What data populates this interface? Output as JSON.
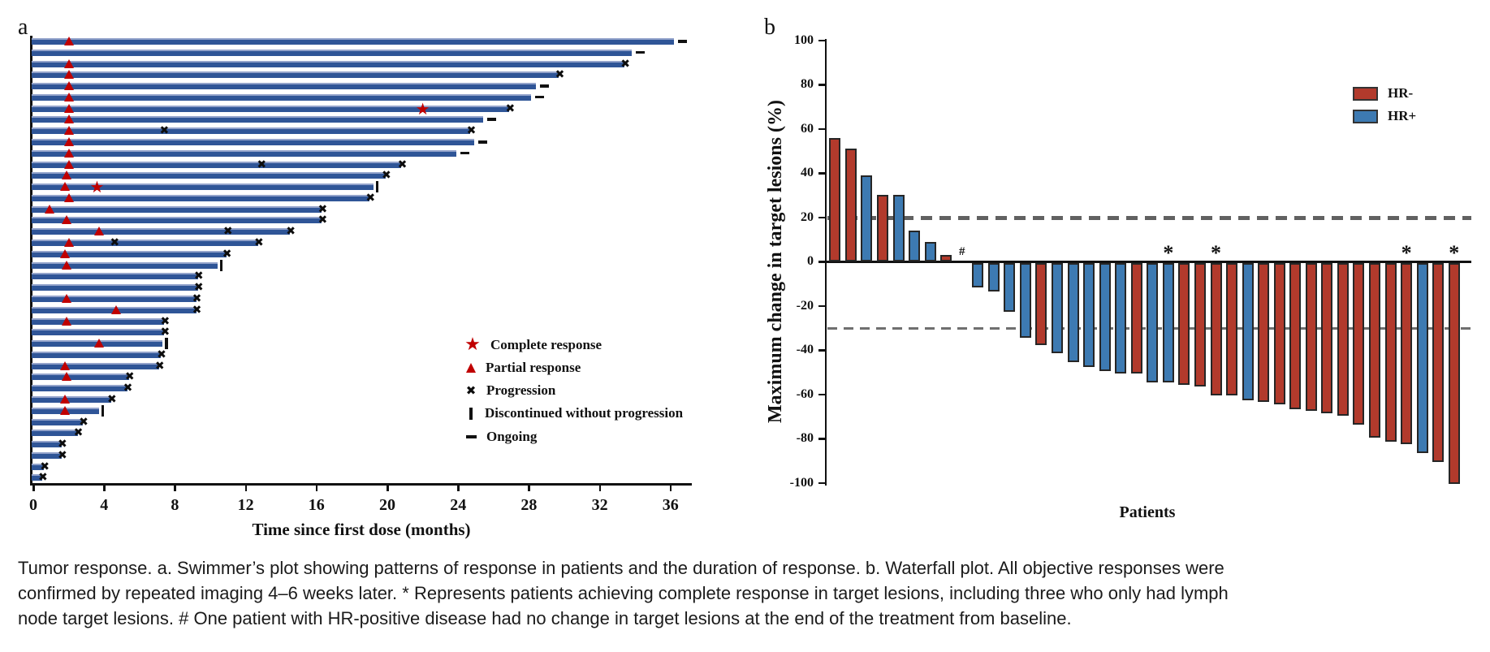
{
  "figure_labels": {
    "panel_a": "a",
    "panel_b": "b"
  },
  "chart_data": [
    {
      "type": "swimmer",
      "xlabel": "Time since first dose (months)",
      "xlim": [
        0,
        38
      ],
      "xticks": [
        0,
        4,
        8,
        12,
        16,
        20,
        24,
        28,
        32,
        36
      ],
      "legend": [
        "Complete response",
        "Partial response",
        "Progression",
        "Discontinued without progression",
        "Ongoing"
      ],
      "bar_color": "#2f5597",
      "marker_red": "#c00000",
      "patients": [
        {
          "duration": 36.2,
          "end": "ongoing",
          "partial_response_at": 2.0,
          "complete_response_at": null,
          "extra_progression_at": null
        },
        {
          "duration": 33.8,
          "end": "ongoing",
          "partial_response_at": null,
          "complete_response_at": null,
          "extra_progression_at": null
        },
        {
          "duration": 33.4,
          "end": "progression",
          "partial_response_at": 2.0,
          "complete_response_at": null,
          "extra_progression_at": null
        },
        {
          "duration": 29.7,
          "end": "progression",
          "partial_response_at": 2.0,
          "complete_response_at": null,
          "extra_progression_at": null
        },
        {
          "duration": 28.4,
          "end": "ongoing",
          "partial_response_at": 2.0,
          "complete_response_at": null,
          "extra_progression_at": null
        },
        {
          "duration": 28.1,
          "end": "ongoing",
          "partial_response_at": 2.0,
          "complete_response_at": null,
          "extra_progression_at": null
        },
        {
          "duration": 26.9,
          "end": "progression",
          "partial_response_at": 2.0,
          "complete_response_at": 22.0,
          "extra_progression_at": null
        },
        {
          "duration": 25.4,
          "end": "ongoing",
          "partial_response_at": 2.0,
          "complete_response_at": null,
          "extra_progression_at": null
        },
        {
          "duration": 24.7,
          "end": "progression",
          "partial_response_at": 2.0,
          "complete_response_at": null,
          "extra_progression_at": 7.4
        },
        {
          "duration": 24.9,
          "end": "ongoing",
          "partial_response_at": 2.0,
          "complete_response_at": null,
          "extra_progression_at": null
        },
        {
          "duration": 23.9,
          "end": "ongoing",
          "partial_response_at": 2.0,
          "complete_response_at": null,
          "extra_progression_at": null
        },
        {
          "duration": 20.8,
          "end": "progression",
          "partial_response_at": 2.0,
          "complete_response_at": null,
          "extra_progression_at": 12.9
        },
        {
          "duration": 19.9,
          "end": "progression",
          "partial_response_at": 1.9,
          "complete_response_at": null,
          "extra_progression_at": null
        },
        {
          "duration": 19.2,
          "end": "discontinued",
          "partial_response_at": 1.8,
          "complete_response_at": 3.6,
          "extra_progression_at": null
        },
        {
          "duration": 19.0,
          "end": "progression",
          "partial_response_at": 2.0,
          "complete_response_at": null,
          "extra_progression_at": null
        },
        {
          "duration": 16.3,
          "end": "progression",
          "partial_response_at": 0.9,
          "complete_response_at": null,
          "extra_progression_at": null
        },
        {
          "duration": 16.3,
          "end": "progression",
          "partial_response_at": 1.9,
          "complete_response_at": null,
          "extra_progression_at": null
        },
        {
          "duration": 14.5,
          "end": "progression",
          "partial_response_at": 3.7,
          "complete_response_at": null,
          "extra_progression_at": 11.0
        },
        {
          "duration": 12.7,
          "end": "progression",
          "partial_response_at": 2.0,
          "complete_response_at": null,
          "extra_progression_at": 4.6
        },
        {
          "duration": 10.9,
          "end": "progression",
          "partial_response_at": 1.8,
          "complete_response_at": null,
          "extra_progression_at": null
        },
        {
          "duration": 10.4,
          "end": "discontinued",
          "partial_response_at": 1.9,
          "complete_response_at": null,
          "extra_progression_at": null
        },
        {
          "duration": 9.3,
          "end": "progression",
          "partial_response_at": null,
          "complete_response_at": null,
          "extra_progression_at": null
        },
        {
          "duration": 9.3,
          "end": "progression",
          "partial_response_at": null,
          "complete_response_at": null,
          "extra_progression_at": null
        },
        {
          "duration": 9.2,
          "end": "progression",
          "partial_response_at": 1.9,
          "complete_response_at": null,
          "extra_progression_at": null
        },
        {
          "duration": 9.2,
          "end": "progression",
          "partial_response_at": 4.7,
          "complete_response_at": null,
          "extra_progression_at": null
        },
        {
          "duration": 7.4,
          "end": "progression",
          "partial_response_at": 1.9,
          "complete_response_at": null,
          "extra_progression_at": null
        },
        {
          "duration": 7.4,
          "end": "progression",
          "partial_response_at": null,
          "complete_response_at": null,
          "extra_progression_at": null
        },
        {
          "duration": 7.3,
          "end": "discontinued",
          "partial_response_at": 3.7,
          "complete_response_at": null,
          "extra_progression_at": null
        },
        {
          "duration": 7.2,
          "end": "progression",
          "partial_response_at": null,
          "complete_response_at": null,
          "extra_progression_at": null
        },
        {
          "duration": 7.1,
          "end": "progression",
          "partial_response_at": 1.8,
          "complete_response_at": null,
          "extra_progression_at": null
        },
        {
          "duration": 5.4,
          "end": "progression",
          "partial_response_at": 1.9,
          "complete_response_at": null,
          "extra_progression_at": null
        },
        {
          "duration": 5.3,
          "end": "progression",
          "partial_response_at": null,
          "complete_response_at": null,
          "extra_progression_at": null
        },
        {
          "duration": 4.4,
          "end": "progression",
          "partial_response_at": 1.8,
          "complete_response_at": null,
          "extra_progression_at": null
        },
        {
          "duration": 3.7,
          "end": "discontinued",
          "partial_response_at": 1.8,
          "complete_response_at": null,
          "extra_progression_at": null
        },
        {
          "duration": 2.8,
          "end": "progression",
          "partial_response_at": null,
          "complete_response_at": null,
          "extra_progression_at": null
        },
        {
          "duration": 2.5,
          "end": "progression",
          "partial_response_at": null,
          "complete_response_at": null,
          "extra_progression_at": null
        },
        {
          "duration": 1.6,
          "end": "progression",
          "partial_response_at": null,
          "complete_response_at": null,
          "extra_progression_at": null
        },
        {
          "duration": 1.6,
          "end": "progression",
          "partial_response_at": null,
          "complete_response_at": null,
          "extra_progression_at": null
        },
        {
          "duration": 0.6,
          "end": "progression",
          "partial_response_at": null,
          "complete_response_at": null,
          "extra_progression_at": null
        },
        {
          "duration": 0.5,
          "end": "progression",
          "partial_response_at": null,
          "complete_response_at": null,
          "extra_progression_at": null
        }
      ]
    },
    {
      "type": "bar",
      "subtype": "waterfall",
      "ylabel": "Maximum change in target lesions (%)",
      "xlabel": "Patients",
      "ylim": [
        -100,
        100
      ],
      "yticks": [
        100,
        80,
        60,
        40,
        20,
        0,
        -20,
        -40,
        -60,
        -80,
        -100
      ],
      "reference_lines": [
        20,
        -30
      ],
      "legend": [
        {
          "label": "HR-",
          "color": "#b23a2c"
        },
        {
          "label": "HR+",
          "color": "#3d7ab2"
        }
      ],
      "group_colors": {
        "HR-": "#b23a2c",
        "HR+": "#3d7ab2"
      },
      "bars": [
        {
          "value": 56,
          "group": "HR-",
          "annotation": null
        },
        {
          "value": 51,
          "group": "HR-",
          "annotation": null
        },
        {
          "value": 39,
          "group": "HR+",
          "annotation": null
        },
        {
          "value": 30,
          "group": "HR-",
          "annotation": null
        },
        {
          "value": 30,
          "group": "HR+",
          "annotation": null
        },
        {
          "value": 14,
          "group": "HR+",
          "annotation": null
        },
        {
          "value": 9,
          "group": "HR+",
          "annotation": null
        },
        {
          "value": 3,
          "group": "HR-",
          "annotation": null
        },
        {
          "value": 0,
          "group": "HR+",
          "annotation": "#"
        },
        {
          "value": -11,
          "group": "HR+",
          "annotation": null
        },
        {
          "value": -13,
          "group": "HR+",
          "annotation": null
        },
        {
          "value": -22,
          "group": "HR+",
          "annotation": null
        },
        {
          "value": -34,
          "group": "HR+",
          "annotation": null
        },
        {
          "value": -37,
          "group": "HR-",
          "annotation": null
        },
        {
          "value": -41,
          "group": "HR+",
          "annotation": null
        },
        {
          "value": -45,
          "group": "HR+",
          "annotation": null
        },
        {
          "value": -47,
          "group": "HR+",
          "annotation": null
        },
        {
          "value": -49,
          "group": "HR+",
          "annotation": null
        },
        {
          "value": -50,
          "group": "HR+",
          "annotation": null
        },
        {
          "value": -50,
          "group": "HR-",
          "annotation": null
        },
        {
          "value": -54,
          "group": "HR+",
          "annotation": null
        },
        {
          "value": -54,
          "group": "HR+",
          "annotation": "*"
        },
        {
          "value": -55,
          "group": "HR-",
          "annotation": null
        },
        {
          "value": -56,
          "group": "HR-",
          "annotation": null
        },
        {
          "value": -60,
          "group": "HR-",
          "annotation": "*"
        },
        {
          "value": -60,
          "group": "HR-",
          "annotation": null
        },
        {
          "value": -62,
          "group": "HR+",
          "annotation": null
        },
        {
          "value": -63,
          "group": "HR-",
          "annotation": null
        },
        {
          "value": -64,
          "group": "HR-",
          "annotation": null
        },
        {
          "value": -66,
          "group": "HR-",
          "annotation": null
        },
        {
          "value": -67,
          "group": "HR-",
          "annotation": null
        },
        {
          "value": -68,
          "group": "HR-",
          "annotation": null
        },
        {
          "value": -69,
          "group": "HR-",
          "annotation": null
        },
        {
          "value": -73,
          "group": "HR-",
          "annotation": null
        },
        {
          "value": -79,
          "group": "HR-",
          "annotation": null
        },
        {
          "value": -81,
          "group": "HR-",
          "annotation": null
        },
        {
          "value": -82,
          "group": "HR-",
          "annotation": "*"
        },
        {
          "value": -86,
          "group": "HR+",
          "annotation": null
        },
        {
          "value": -90,
          "group": "HR-",
          "annotation": null
        },
        {
          "value": -100,
          "group": "HR-",
          "annotation": "*"
        }
      ]
    }
  ],
  "caption": {
    "lines": [
      "Tumor response. a. Swimmer’s plot showing patterns of response in patients and the duration of response. b. Waterfall plot. All objective responses were",
      "confirmed by repeated imaging 4–6 weeks later. * Represents patients achieving complete response in target lesions, including three who only had lymph",
      "node target lesions. # One patient with HR-positive disease had no change in target lesions at the end of the treatment from baseline."
    ]
  },
  "colors": {
    "swimmer_bar": "#2f5597",
    "marker_red": "#c00000",
    "hr_negative": "#b23a2c",
    "hr_positive": "#3d7ab2",
    "axis": "#111111",
    "dashed_line": "#616161"
  }
}
